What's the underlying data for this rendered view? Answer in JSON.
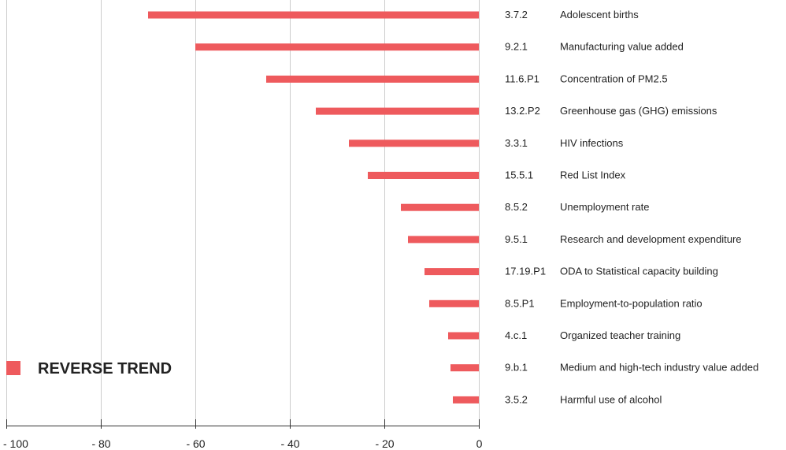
{
  "chart_data": {
    "type": "bar",
    "orientation": "horizontal",
    "title": "",
    "xlabel": "",
    "ylabel": "",
    "xlim": [
      -100,
      0
    ],
    "xticks": [
      -100,
      -80,
      -60,
      -40,
      -20,
      0
    ],
    "xtick_labels": [
      "- 100",
      "- 80",
      "- 60",
      "- 40",
      "- 20",
      "0"
    ],
    "grid": "vertical",
    "legend": {
      "label": "REVERSE TREND",
      "placement": "bottom-left",
      "color": "#ee5a5d"
    },
    "bar_color": "#ee5a5d",
    "categories": [
      {
        "code": "3.7.2",
        "name": "Adolescent births"
      },
      {
        "code": "9.2.1",
        "name": "Manufacturing value added"
      },
      {
        "code": "11.6.P1",
        "name": "Concentration of PM2.5"
      },
      {
        "code": "13.2.P2",
        "name": "Greenhouse gas (GHG) emissions"
      },
      {
        "code": "3.3.1",
        "name": "HIV infections"
      },
      {
        "code": "15.5.1",
        "name": "Red List Index"
      },
      {
        "code": "8.5.2",
        "name": "Unemployment rate"
      },
      {
        "code": "9.5.1",
        "name": "Research and development expenditure"
      },
      {
        "code": "17.19.P1",
        "name": "ODA to Statistical capacity building"
      },
      {
        "code": "8.5.P1",
        "name": "Employment-to-population ratio"
      },
      {
        "code": "4.c.1",
        "name": "Organized teacher training"
      },
      {
        "code": "9.b.1",
        "name": "Medium and high-tech industry value added"
      },
      {
        "code": "3.5.2",
        "name": "Harmful use of alcohol"
      }
    ],
    "values": [
      -70,
      -60,
      -45,
      -34.5,
      -27.5,
      -23.5,
      -16.5,
      -15,
      -11.5,
      -10.5,
      -6.5,
      -6,
      -5.5
    ]
  }
}
